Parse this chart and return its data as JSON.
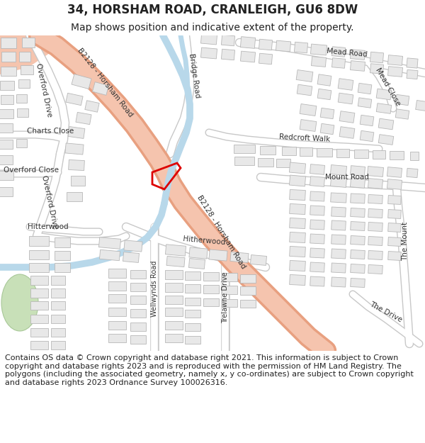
{
  "title_line1": "34, HORSHAM ROAD, CRANLEIGH, GU6 8DW",
  "title_line2": "Map shows position and indicative extent of the property.",
  "copyright_text": "Contains OS data © Crown copyright and database right 2021. This information is subject to Crown copyright and database rights 2023 and is reproduced with the permission of HM Land Registry. The polygons (including the associated geometry, namely x, y co-ordinates) are subject to Crown copyright and database rights 2023 Ordnance Survey 100026316.",
  "bg_color": "#ffffff",
  "map_bg": "#ffffff",
  "road_salmon": "#f5c4ae",
  "road_salmon_edge": "#e8a080",
  "road_blue": "#b8d8ea",
  "road_white": "#ffffff",
  "road_edge": "#c8c8c8",
  "building_fill": "#e8e8e8",
  "building_edge": "#b8b8b8",
  "green_fill": "#c8e0b8",
  "green_edge": "#a8c898",
  "red_poly": "#dd0000",
  "title_fs": 12,
  "sub_fs": 10,
  "copy_fs": 8
}
